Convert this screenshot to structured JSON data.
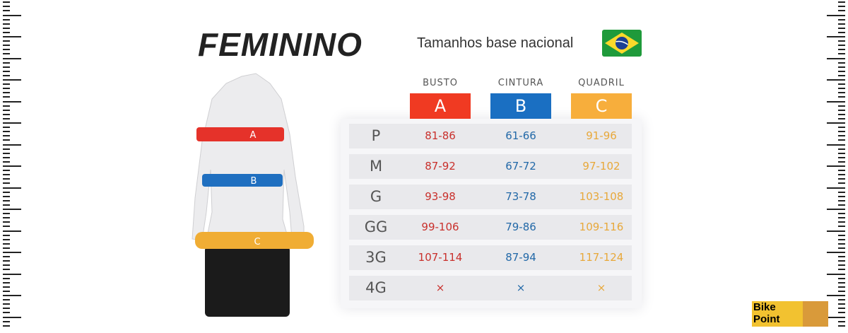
{
  "header": {
    "title": "FEMININO",
    "subtitle": "Tamanhos base nacional",
    "flag_icon": "brazil-flag"
  },
  "columns": [
    {
      "name": "BUSTO",
      "letter": "A",
      "color": "#f03a22",
      "text_color": "#c9302c"
    },
    {
      "name": "CINTURA",
      "letter": "B",
      "color": "#1a6fc2",
      "text_color": "#2369a8"
    },
    {
      "name": "QUADRIL",
      "letter": "C",
      "color": "#f7ae3c",
      "text_color": "#e8a83a"
    }
  ],
  "rows": [
    {
      "size": "P",
      "values": [
        "81-86",
        "61-66",
        "91-96"
      ]
    },
    {
      "size": "M",
      "values": [
        "87-92",
        "67-72",
        "97-102"
      ]
    },
    {
      "size": "G",
      "values": [
        "93-98",
        "73-78",
        "103-108"
      ]
    },
    {
      "size": "GG",
      "values": [
        "99-106",
        "79-86",
        "109-116"
      ]
    },
    {
      "size": "3G",
      "values": [
        "107-114",
        "87-94",
        "117-124"
      ]
    },
    {
      "size": "4G",
      "values": [
        "×",
        "×",
        "×"
      ]
    }
  ],
  "figure": {
    "band_labels": [
      "A",
      "B",
      "C"
    ]
  },
  "logo": {
    "line1": "Bike",
    "line2": "Point"
  }
}
